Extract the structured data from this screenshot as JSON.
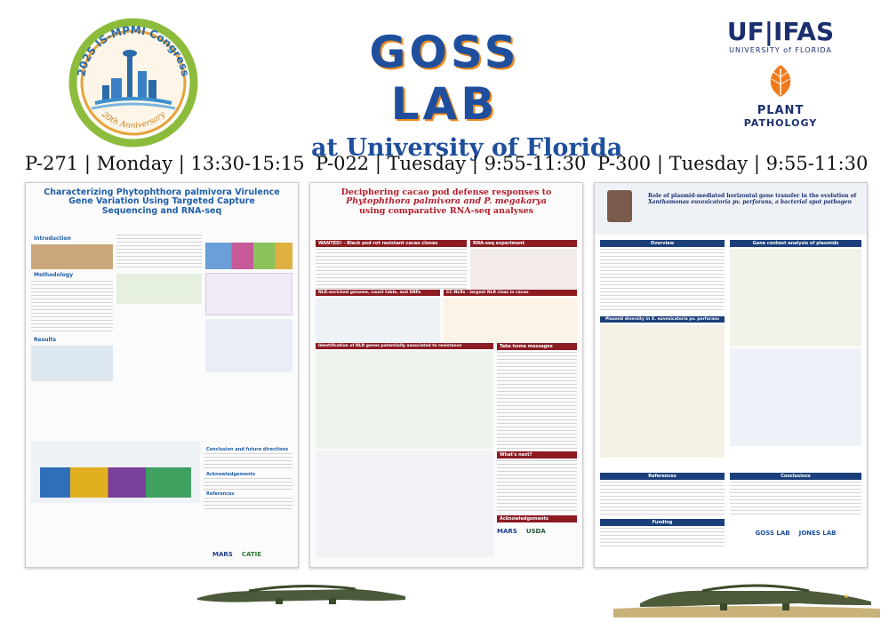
{
  "header": {
    "congress": {
      "top_text": "2025 IS-MPMI Congress",
      "bottom_text": "20th Anniversary"
    },
    "lab": {
      "line1": "GOSS LAB",
      "line2": "at University of Florida"
    },
    "ifas": {
      "brand": "UF|IFAS",
      "subtitle": "UNIVERSITY of FLORIDA",
      "dept_line1": "PLANT",
      "dept_line2": "PATHOLOGY"
    }
  },
  "sessions": [
    "P-271 | Monday | 13:30-15:15",
    "P-022 | Tuesday | 9:55-11:30",
    "P-300 | Tuesday | 9:55-11:30"
  ],
  "posters": [
    {
      "title_line1": "Characterizing Phytophthora palmivora Virulence",
      "title_line2": "Gene Variation Using Targeted Capture",
      "title_line3": "Sequencing and RNA-seq",
      "sections": [
        "Introduction",
        "Methodology",
        "Results",
        "Conclusion and future directions",
        "Acknowledgements",
        "References"
      ],
      "sponsors": [
        "MARS",
        "CATIE"
      ]
    },
    {
      "title_line1": "Deciphering cacao pod defense responses to",
      "title_line2": "Phytophthora palmivora and P. megakarya",
      "title_line3": "using comparative RNA-seq analyses",
      "sections": [
        "WANTED! - Black pod rot resistant cacao clones",
        "RNA-seq experiment",
        "NLR-enriched genome, count table, and SNPs",
        "CC-NLRs - largest NLR class in cacao",
        "Identification of NLR genes potentially associated to resistance",
        "Take home messages",
        "What's next?",
        "Acknowledgements"
      ],
      "sponsors": [
        "MARS",
        "USDA"
      ]
    },
    {
      "title_line1": "Role of plasmid-mediated horizontal gene transfer in the evolution of",
      "title_line2": "Xanthomonas euvesicatoria pv. perforans, a bacterial spot pathogen",
      "sections": [
        "Overview",
        "Gene content analysis of plasmids",
        "Plasmid diversity in X. euvesicatoria pv. perforans",
        "References",
        "Conclusions",
        "Funding"
      ],
      "sponsors": [
        "GOSS LAB",
        "JONES LAB"
      ]
    }
  ]
}
